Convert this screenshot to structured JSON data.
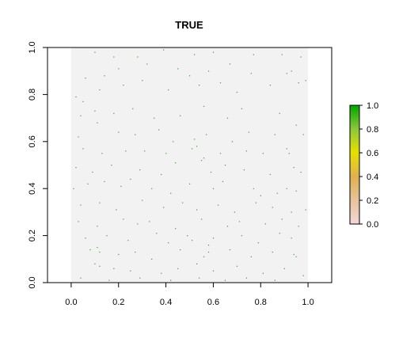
{
  "chart_data": {
    "type": "scatter",
    "title": "TRUE",
    "xlabel": "",
    "ylabel": "",
    "xlim": [
      -0.1,
      1.1
    ],
    "ylim": [
      0.0,
      1.0
    ],
    "x_ticks": [
      "0.0",
      "0.2",
      "0.4",
      "0.6",
      "0.8",
      "1.0"
    ],
    "y_ticks": [
      "0.0",
      "0.2",
      "0.4",
      "0.6",
      "0.8",
      "1.0"
    ],
    "raster_extent": {
      "x": [
        0.0,
        1.0
      ],
      "y": [
        0.0,
        1.0
      ]
    },
    "background_value": 0.0,
    "background_color": "#f2f2f2",
    "point_value": 1.0,
    "point_color": "#33a02c",
    "points": [
      [
        0.1,
        0.98
      ],
      [
        0.18,
        0.96
      ],
      [
        0.28,
        0.96
      ],
      [
        0.39,
        0.99
      ],
      [
        0.52,
        0.97
      ],
      [
        0.6,
        0.98
      ],
      [
        0.77,
        0.97
      ],
      [
        0.89,
        0.97
      ],
      [
        0.97,
        0.96
      ],
      [
        0.06,
        0.87
      ],
      [
        0.14,
        0.88
      ],
      [
        0.2,
        0.91
      ],
      [
        0.32,
        0.93
      ],
      [
        0.45,
        0.91
      ],
      [
        0.5,
        0.88
      ],
      [
        0.58,
        0.9
      ],
      [
        0.67,
        0.93
      ],
      [
        0.76,
        0.89
      ],
      [
        0.91,
        0.89
      ],
      [
        0.93,
        0.9
      ],
      [
        0.02,
        0.79
      ],
      [
        0.05,
        0.77
      ],
      [
        0.12,
        0.82
      ],
      [
        0.22,
        0.84
      ],
      [
        0.3,
        0.86
      ],
      [
        0.41,
        0.82
      ],
      [
        0.54,
        0.84
      ],
      [
        0.63,
        0.85
      ],
      [
        0.7,
        0.81
      ],
      [
        0.84,
        0.84
      ],
      [
        0.99,
        0.86
      ],
      [
        0.96,
        0.85
      ],
      [
        0.04,
        0.71
      ],
      [
        0.1,
        0.73
      ],
      [
        0.18,
        0.72
      ],
      [
        0.26,
        0.74
      ],
      [
        0.35,
        0.7
      ],
      [
        0.46,
        0.71
      ],
      [
        0.56,
        0.75
      ],
      [
        0.66,
        0.7
      ],
      [
        0.72,
        0.74
      ],
      [
        0.88,
        0.72
      ],
      [
        0.95,
        0.67
      ],
      [
        0.03,
        0.62
      ],
      [
        0.11,
        0.68
      ],
      [
        0.2,
        0.64
      ],
      [
        0.27,
        0.63
      ],
      [
        0.37,
        0.65
      ],
      [
        0.43,
        0.6
      ],
      [
        0.52,
        0.61
      ],
      [
        0.57,
        0.63
      ],
      [
        0.68,
        0.6
      ],
      [
        0.75,
        0.64
      ],
      [
        0.86,
        0.63
      ],
      [
        0.98,
        0.63
      ],
      [
        0.05,
        0.57
      ],
      [
        0.13,
        0.55
      ],
      [
        0.23,
        0.56
      ],
      [
        0.31,
        0.56
      ],
      [
        0.4,
        0.55
      ],
      [
        0.51,
        0.57
      ],
      [
        0.53,
        0.58
      ],
      [
        0.55,
        0.52
      ],
      [
        0.56,
        0.53
      ],
      [
        0.63,
        0.55
      ],
      [
        0.74,
        0.56
      ],
      [
        0.81,
        0.55
      ],
      [
        0.91,
        0.57
      ],
      [
        0.92,
        0.55
      ],
      [
        0.02,
        0.49
      ],
      [
        0.09,
        0.47
      ],
      [
        0.17,
        0.5
      ],
      [
        0.29,
        0.48
      ],
      [
        0.38,
        0.46
      ],
      [
        0.44,
        0.51
      ],
      [
        0.59,
        0.47
      ],
      [
        0.65,
        0.5
      ],
      [
        0.73,
        0.48
      ],
      [
        0.84,
        0.46
      ],
      [
        0.94,
        0.49
      ],
      [
        0.97,
        0.47
      ],
      [
        0.01,
        0.4
      ],
      [
        0.07,
        0.42
      ],
      [
        0.14,
        0.43
      ],
      [
        0.21,
        0.41
      ],
      [
        0.25,
        0.44
      ],
      [
        0.34,
        0.4
      ],
      [
        0.42,
        0.38
      ],
      [
        0.5,
        0.42
      ],
      [
        0.6,
        0.4
      ],
      [
        0.64,
        0.43
      ],
      [
        0.77,
        0.4
      ],
      [
        0.8,
        0.37
      ],
      [
        0.87,
        0.38
      ],
      [
        0.91,
        0.4
      ],
      [
        0.95,
        0.39
      ],
      [
        0.04,
        0.33
      ],
      [
        0.12,
        0.34
      ],
      [
        0.19,
        0.31
      ],
      [
        0.3,
        0.35
      ],
      [
        0.39,
        0.32
      ],
      [
        0.47,
        0.34
      ],
      [
        0.53,
        0.31
      ],
      [
        0.62,
        0.33
      ],
      [
        0.69,
        0.3
      ],
      [
        0.78,
        0.34
      ],
      [
        0.85,
        0.32
      ],
      [
        0.93,
        0.3
      ],
      [
        0.99,
        0.31
      ],
      [
        0.03,
        0.26
      ],
      [
        0.11,
        0.24
      ],
      [
        0.22,
        0.27
      ],
      [
        0.28,
        0.25
      ],
      [
        0.33,
        0.26
      ],
      [
        0.44,
        0.23
      ],
      [
        0.55,
        0.27
      ],
      [
        0.66,
        0.24
      ],
      [
        0.71,
        0.26
      ],
      [
        0.82,
        0.25
      ],
      [
        0.89,
        0.27
      ],
      [
        0.96,
        0.24
      ],
      [
        0.06,
        0.19
      ],
      [
        0.15,
        0.2
      ],
      [
        0.24,
        0.18
      ],
      [
        0.36,
        0.21
      ],
      [
        0.41,
        0.17
      ],
      [
        0.49,
        0.2
      ],
      [
        0.51,
        0.18
      ],
      [
        0.58,
        0.16
      ],
      [
        0.6,
        0.19
      ],
      [
        0.72,
        0.2
      ],
      [
        0.79,
        0.17
      ],
      [
        0.88,
        0.21
      ],
      [
        0.93,
        0.19
      ],
      [
        0.08,
        0.14
      ],
      [
        0.11,
        0.15
      ],
      [
        0.12,
        0.13
      ],
      [
        0.2,
        0.12
      ],
      [
        0.27,
        0.13
      ],
      [
        0.34,
        0.1
      ],
      [
        0.46,
        0.14
      ],
      [
        0.56,
        0.11
      ],
      [
        0.58,
        0.13
      ],
      [
        0.67,
        0.14
      ],
      [
        0.76,
        0.11
      ],
      [
        0.85,
        0.13
      ],
      [
        0.94,
        0.12
      ],
      [
        0.95,
        0.11
      ],
      [
        0.1,
        0.08
      ],
      [
        0.12,
        0.07
      ],
      [
        0.18,
        0.06
      ],
      [
        0.25,
        0.05
      ],
      [
        0.38,
        0.04
      ],
      [
        0.45,
        0.06
      ],
      [
        0.53,
        0.08
      ],
      [
        0.6,
        0.05
      ],
      [
        0.7,
        0.07
      ],
      [
        0.81,
        0.04
      ],
      [
        0.9,
        0.06
      ],
      [
        0.98,
        0.03
      ],
      [
        0.04,
        0.02
      ],
      [
        0.16,
        0.01
      ],
      [
        0.29,
        0.02
      ],
      [
        0.42,
        0.01
      ],
      [
        0.54,
        0.02
      ],
      [
        0.65,
        0.01
      ],
      [
        0.74,
        0.02
      ],
      [
        0.86,
        0.01
      ]
    ],
    "legend": {
      "type": "colorbar",
      "placement": "right",
      "range": [
        0.0,
        1.0
      ],
      "ticks": [
        "0.0",
        "0.2",
        "0.4",
        "0.6",
        "0.8",
        "1.0"
      ],
      "colors": [
        "#f2d8d8",
        "#e8c29a",
        "#e0b050",
        "#e8e000",
        "#8cc83a",
        "#00a600"
      ]
    },
    "grid": false
  }
}
